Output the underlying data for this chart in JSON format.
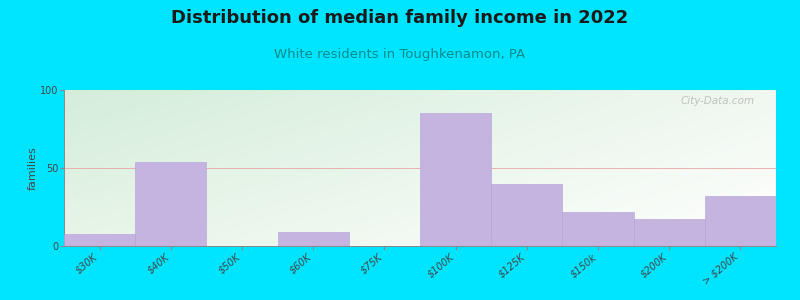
{
  "title": "Distribution of median family income in 2022",
  "subtitle": "White residents in Toughkenamon, PA",
  "categories": [
    "$30K",
    "$40K",
    "$50K",
    "$60K",
    "$75K",
    "$100K",
    "$125K",
    "$150k",
    "$200K",
    "> $200K"
  ],
  "values": [
    8,
    54,
    0,
    9,
    0,
    85,
    40,
    22,
    17,
    32
  ],
  "bar_color": "#c5b3e0",
  "bar_edge_color": "#b39ddb",
  "outer_background": "#00e5ff",
  "title_color": "#1a1a1a",
  "subtitle_color": "#008b8b",
  "ylabel": "families",
  "ylim": [
    0,
    100
  ],
  "yticks": [
    0,
    50,
    100
  ],
  "grid_color": "#e8a0a0",
  "title_fontsize": 13,
  "subtitle_fontsize": 9.5,
  "tick_fontsize": 7,
  "ylabel_fontsize": 8,
  "watermark": "© City-Data.com",
  "bg_left_color": "#d4edda",
  "bg_right_color": "#eaf4f0"
}
